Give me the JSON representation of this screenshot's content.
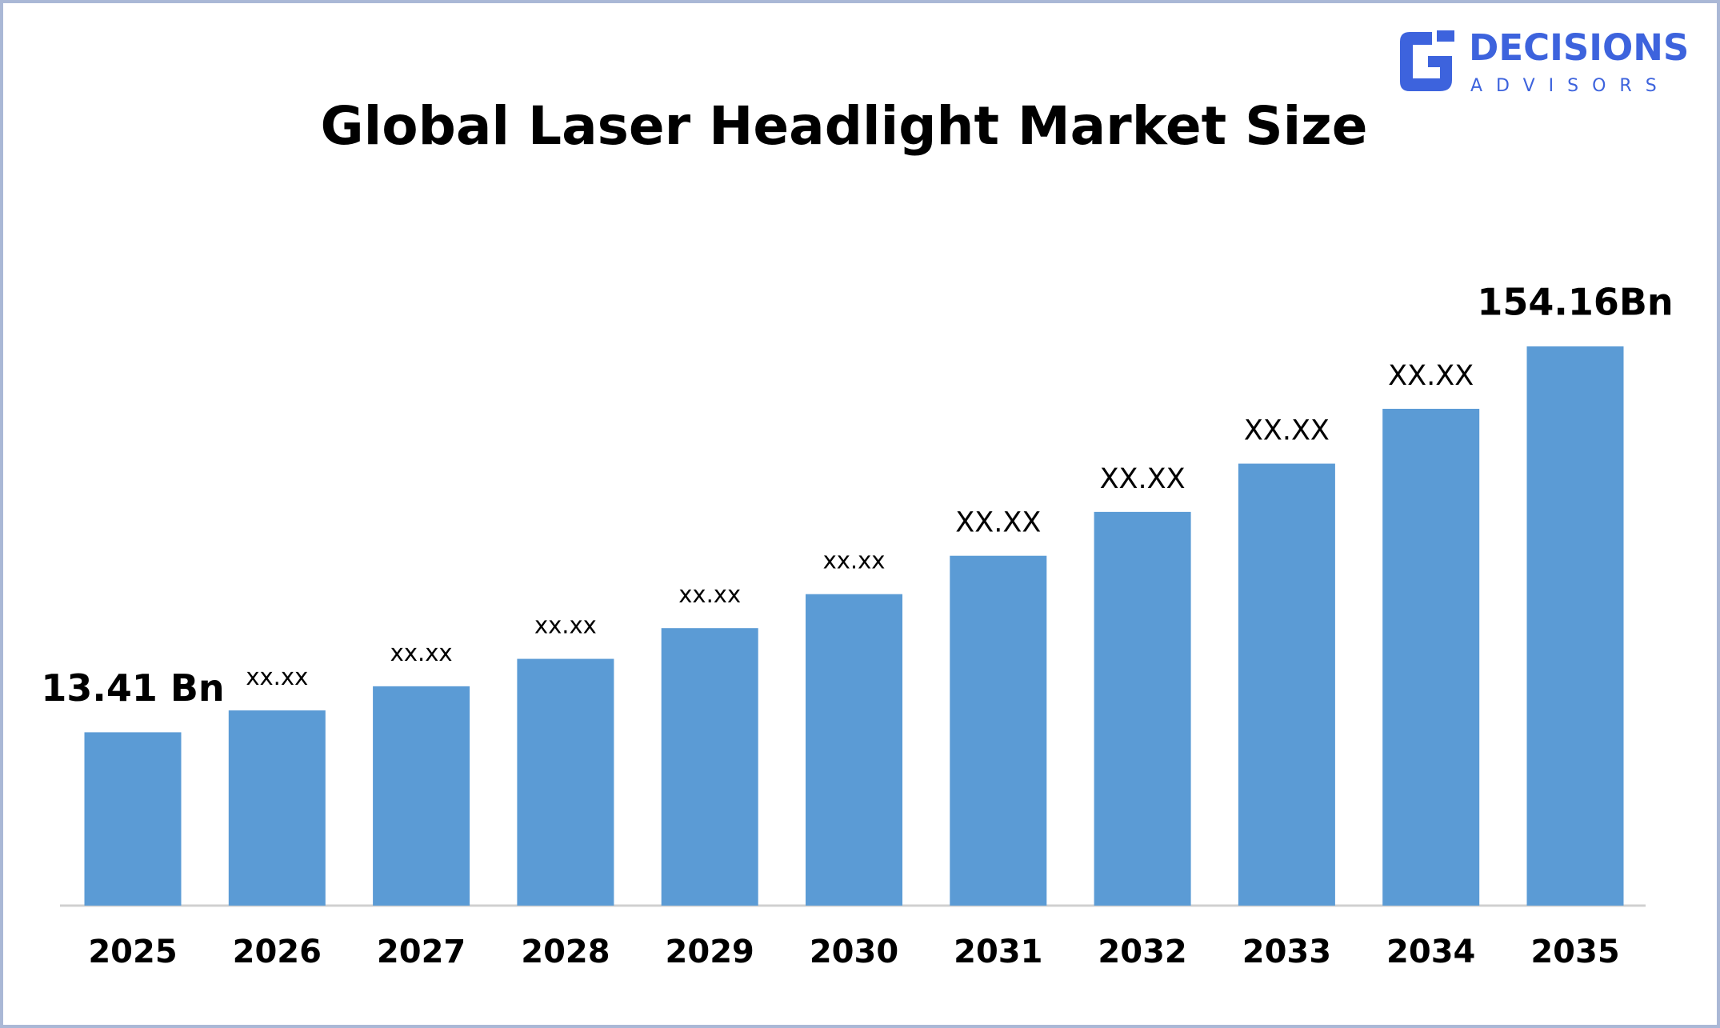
{
  "logo": {
    "name": "DECISIONS",
    "tagline": "ADVISORS"
  },
  "chart_data": {
    "type": "bar",
    "title": "Global Laser Headlight Market Size",
    "categories": [
      "2025",
      "2026",
      "2027",
      "2028",
      "2029",
      "2030",
      "2031",
      "2032",
      "2033",
      "2034",
      "2035"
    ],
    "values": [
      13.41,
      21.4,
      30.2,
      40.2,
      51.4,
      63.8,
      77.8,
      93.8,
      111.4,
      131.4,
      154.16
    ],
    "value_labels": [
      "13.41 Bn",
      "xx.xx",
      "xx.xx",
      "xx.xx",
      "xx.xx",
      "xx.xx",
      "XX.XX",
      "XX.XX",
      "XX.XX",
      "XX.XX",
      "154.16Bn"
    ],
    "color": "#5b9bd5",
    "ylim": [
      -49.8,
      160
    ]
  }
}
